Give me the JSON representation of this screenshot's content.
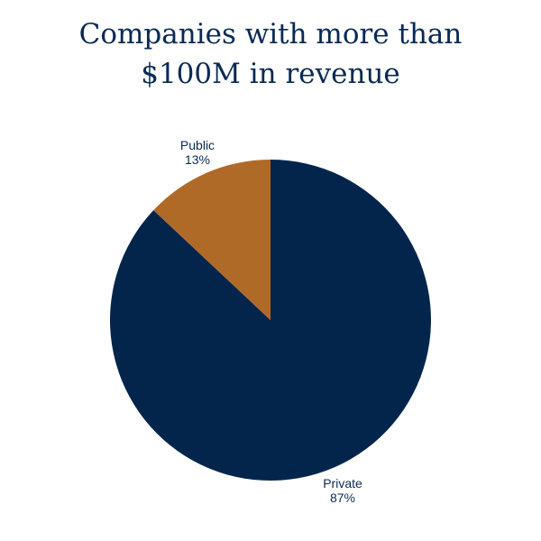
{
  "title_lines": [
    "Companies with more than",
    "$100M in revenue"
  ],
  "colors": {
    "title": "#0a2a55",
    "label": "#0a2a55"
  },
  "chart_data": {
    "type": "pie",
    "title": "Companies with more than $100M in revenue",
    "start_angle_deg": 0,
    "direction": "clockwise",
    "slices": [
      {
        "label": "Private",
        "value": 87,
        "value_label": "87%",
        "color": "#03254c"
      },
      {
        "label": "Public",
        "value": 13,
        "value_label": "13%",
        "color": "#b06a28"
      }
    ]
  }
}
